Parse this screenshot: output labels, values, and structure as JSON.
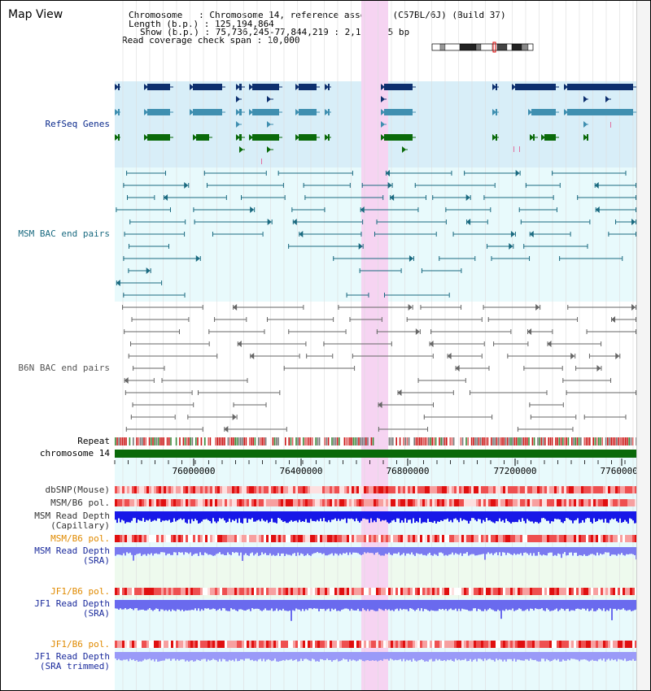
{
  "header": {
    "title": "Map View",
    "chromosome_line": "Chromosome   : Chromosome 14, reference assembly (C57BL/6J) (Build 37)",
    "length_line": "Length (b.p.) : 125,194,864",
    "show_line": "Show (b.p.) : 75,736,245-77,844,219 : 2,107,975 bp",
    "coverage_line": "Read coverage check span : 10,000"
  },
  "tracks": {
    "refseq": {
      "label": "RefSeq Genes",
      "color": "#0b2a8c"
    },
    "msm_bac": {
      "label": "MSM BAC end pairs",
      "color": "#1a6a80"
    },
    "b6n_bac": {
      "label": "B6N BAC end pairs",
      "color": "#555555"
    },
    "repeat": {
      "label": "Repeat",
      "color": "#000000"
    },
    "chromosome": {
      "label": "chromosome 14",
      "color": "#000000"
    },
    "dbsnp": {
      "label": "dbSNP(Mouse)",
      "color": "#333333"
    },
    "msm_b6_pol_1": {
      "label": "MSM/B6 pol.",
      "color": "#333333"
    },
    "msm_depth_cap": {
      "label": "MSM Read Depth\n(Capillary)",
      "color": "#333333"
    },
    "msm_b6_pol_2": {
      "label": "MSM/B6 pol.",
      "color": "#e08a00"
    },
    "msm_depth_sra": {
      "label": "MSM Read Depth\n(SRA)",
      "color": "#1a2a9c"
    },
    "jf1_b6_pol_1": {
      "label": "JF1/B6 pol.",
      "color": "#e08a00"
    },
    "jf1_depth_sra": {
      "label": "JF1 Read Depth\n(SRA)",
      "color": "#1a2a9c"
    },
    "jf1_b6_pol_2": {
      "label": "JF1/B6 pol.",
      "color": "#e08a00"
    },
    "jf1_depth_trim": {
      "label": "JF1 Read Depth\n(SRA trimmed)",
      "color": "#1a2a9c"
    }
  },
  "axis": {
    "ticks": [
      "76000000",
      "76400000",
      "76800000",
      "77200000",
      "77600000"
    ]
  },
  "colors": {
    "highlight": "#f6d4f2",
    "refseq_bg": "#d8eef8",
    "bac_bg": "#e8fafc",
    "gene_dark": "#0d2f6e",
    "gene_mid": "#3f8fb0",
    "gene_green": "#0a6a0a"
  }
}
